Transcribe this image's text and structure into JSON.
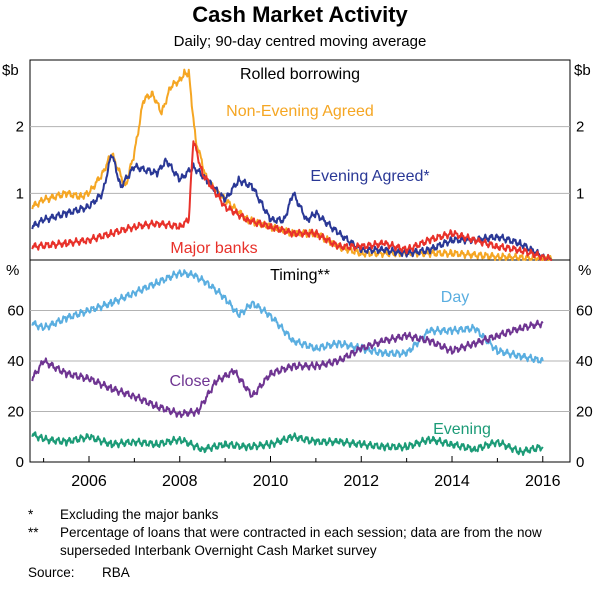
{
  "header": {
    "title": "Cash Market Activity",
    "subtitle": "Daily; 90-day centred moving average"
  },
  "footnotes": [
    {
      "mark": "*",
      "text": "Excluding the major banks"
    },
    {
      "mark": "**",
      "text": "Percentage of loans that were contracted in each session; data are from the now superseded Interbank Overnight Cash Market survey"
    }
  ],
  "source": {
    "label": "Source:",
    "value": "RBA"
  },
  "colors": {
    "non_evening_agreed": "#f5a623",
    "evening_agreed": "#2a3896",
    "major_banks": "#e8312a",
    "day": "#5aaee0",
    "close": "#6f3592",
    "evening": "#1c9b77"
  },
  "chart_data": [
    {
      "type": "line",
      "panel": "top",
      "title": "Rolled borrowing",
      "ylabel": "$b",
      "ylim": [
        0,
        3
      ],
      "yticks": [
        1,
        2
      ],
      "xlim": [
        2004.7,
        2016.6
      ],
      "series": [
        {
          "name": "Non-Evening Agreed",
          "label": "Non-Evening Agreed",
          "color": "#f5a623",
          "x": [
            2004.75,
            2005.0,
            2005.5,
            2005.8,
            2006.0,
            2006.3,
            2006.5,
            2006.8,
            2007.0,
            2007.2,
            2007.4,
            2007.6,
            2007.8,
            2008.0,
            2008.1,
            2008.2,
            2008.35,
            2008.6,
            2009.0,
            2009.5,
            2010.0,
            2010.5,
            2011.0,
            2011.5,
            2012.0,
            2013.0,
            2014.0,
            2015.0,
            2016.0,
            2016.2
          ],
          "y": [
            0.8,
            0.9,
            1.0,
            0.95,
            1.0,
            1.3,
            1.6,
            1.1,
            1.6,
            2.4,
            2.5,
            2.2,
            2.6,
            2.7,
            2.8,
            2.8,
            1.8,
            1.2,
            0.9,
            0.6,
            0.5,
            0.4,
            0.4,
            0.2,
            0.1,
            0.1,
            0.1,
            0.05,
            0.02,
            0.0
          ]
        },
        {
          "name": "Evening Agreed*",
          "label": "Evening Agreed*",
          "color": "#2a3896",
          "x": [
            2004.75,
            2005.0,
            2005.5,
            2006.0,
            2006.3,
            2006.5,
            2006.7,
            2007.0,
            2007.5,
            2007.7,
            2008.0,
            2008.3,
            2008.6,
            2009.0,
            2009.3,
            2009.6,
            2010.0,
            2010.3,
            2010.5,
            2010.8,
            2011.0,
            2011.5,
            2012.0,
            2012.5,
            2013.0,
            2013.5,
            2014.0,
            2014.5,
            2015.0,
            2015.5,
            2016.0,
            2016.2
          ],
          "y": [
            0.5,
            0.6,
            0.7,
            0.8,
            1.0,
            1.6,
            1.1,
            1.4,
            1.3,
            1.5,
            1.2,
            1.4,
            1.2,
            0.9,
            1.2,
            1.1,
            0.6,
            0.6,
            1.0,
            0.6,
            0.7,
            0.4,
            0.15,
            0.15,
            0.1,
            0.15,
            0.3,
            0.3,
            0.35,
            0.25,
            0.05,
            0.0
          ]
        },
        {
          "name": "Major banks",
          "label": "Major banks",
          "color": "#e8312a",
          "x": [
            2004.75,
            2005.5,
            2006.0,
            2006.5,
            2007.0,
            2007.5,
            2008.0,
            2008.2,
            2008.3,
            2008.5,
            2009.0,
            2009.5,
            2010.0,
            2010.5,
            2011.0,
            2011.5,
            2012.0,
            2012.5,
            2013.0,
            2013.5,
            2014.0,
            2014.5,
            2015.0,
            2015.5,
            2016.0,
            2016.2
          ],
          "y": [
            0.2,
            0.25,
            0.3,
            0.4,
            0.5,
            0.55,
            0.5,
            0.6,
            1.8,
            1.3,
            0.8,
            0.6,
            0.5,
            0.4,
            0.4,
            0.2,
            0.2,
            0.25,
            0.15,
            0.3,
            0.4,
            0.3,
            0.2,
            0.15,
            0.05,
            0.0
          ]
        }
      ]
    },
    {
      "type": "line",
      "panel": "bottom",
      "title": "Timing**",
      "ylabel": "%",
      "ylim": [
        0,
        80
      ],
      "yticks": [
        0,
        20,
        40,
        60
      ],
      "xlim": [
        2004.7,
        2016.6
      ],
      "xticks": [
        2006,
        2008,
        2010,
        2012,
        2014,
        2016
      ],
      "series": [
        {
          "name": "Day",
          "label": "Day",
          "color": "#5aaee0",
          "x": [
            2004.75,
            2005.0,
            2005.5,
            2006.0,
            2006.5,
            2007.0,
            2007.5,
            2008.0,
            2008.3,
            2008.6,
            2009.0,
            2009.3,
            2009.6,
            2010.0,
            2010.5,
            2011.0,
            2011.5,
            2012.0,
            2012.5,
            2013.0,
            2013.5,
            2014.0,
            2014.5,
            2015.0,
            2015.5,
            2016.0
          ],
          "y": [
            55,
            53,
            57,
            60,
            63,
            67,
            71,
            75,
            74,
            71,
            65,
            58,
            63,
            58,
            48,
            45,
            47,
            45,
            43,
            43,
            52,
            52,
            53,
            44,
            42,
            40
          ]
        },
        {
          "name": "Close",
          "label": "Close",
          "color": "#6f3592",
          "x": [
            2004.75,
            2005.0,
            2005.5,
            2006.0,
            2006.5,
            2007.0,
            2007.5,
            2008.0,
            2008.4,
            2008.8,
            2009.2,
            2009.6,
            2010.0,
            2010.5,
            2011.0,
            2011.5,
            2012.0,
            2012.5,
            2013.0,
            2013.5,
            2014.0,
            2014.5,
            2015.0,
            2015.5,
            2016.0
          ],
          "y": [
            33,
            40,
            35,
            33,
            29,
            26,
            22,
            19,
            20,
            32,
            36,
            26,
            35,
            38,
            38,
            40,
            45,
            48,
            50,
            48,
            44,
            47,
            50,
            53,
            55
          ]
        },
        {
          "name": "Evening",
          "label": "Evening",
          "color": "#1c9b77",
          "x": [
            2004.75,
            2005.0,
            2005.5,
            2006.0,
            2006.5,
            2007.0,
            2007.5,
            2008.0,
            2008.5,
            2009.0,
            2009.5,
            2010.0,
            2010.5,
            2011.0,
            2011.5,
            2012.0,
            2012.5,
            2013.0,
            2013.5,
            2014.0,
            2014.5,
            2015.0,
            2015.5,
            2016.0
          ],
          "y": [
            11,
            9,
            8,
            10,
            7,
            8,
            7,
            9,
            5,
            7,
            6,
            7,
            10,
            8,
            8,
            7,
            6,
            6,
            9,
            7,
            5,
            8,
            4,
            6
          ]
        }
      ]
    }
  ]
}
